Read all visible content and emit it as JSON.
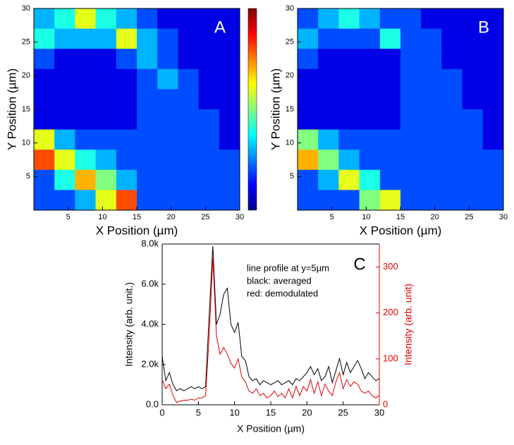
{
  "chart_data": [
    {
      "type": "heatmap",
      "panel_label": "A",
      "x_label": "X Position (µm)",
      "y_label": "Y Position (µm)",
      "xlim": [
        0,
        30
      ],
      "ylim": [
        0,
        30
      ],
      "xticks": [
        5,
        10,
        15,
        20,
        25,
        30
      ],
      "yticks": [
        5,
        10,
        15,
        20,
        25,
        30
      ],
      "zlim": [
        0,
        10
      ],
      "colormap": "jet",
      "colorbar": true,
      "z": [
        [
          3,
          4,
          6,
          4,
          3,
          2,
          1,
          1,
          1,
          1
        ],
        [
          4,
          3,
          3,
          3,
          6,
          3,
          2,
          1,
          1,
          1
        ],
        [
          2,
          1,
          1,
          1,
          2,
          3,
          2,
          1,
          1,
          1
        ],
        [
          1,
          1,
          1,
          1,
          1,
          2,
          3,
          2,
          1,
          1
        ],
        [
          1,
          1,
          1,
          1,
          1,
          2,
          2,
          2,
          1,
          1
        ],
        [
          1,
          1,
          1,
          1,
          1,
          2,
          2,
          2,
          2,
          1
        ],
        [
          6,
          3,
          2,
          2,
          2,
          2,
          2,
          2,
          2,
          1
        ],
        [
          8,
          6,
          4,
          3,
          2,
          2,
          2,
          2,
          2,
          2
        ],
        [
          2,
          4,
          7,
          5,
          3,
          2,
          2,
          2,
          2,
          2
        ],
        [
          2,
          2,
          3,
          6,
          8,
          2,
          2,
          2,
          2,
          2
        ]
      ]
    },
    {
      "type": "heatmap",
      "panel_label": "B",
      "x_label": "X Position (µm)",
      "y_label": "Y Position (µm)",
      "xlim": [
        0,
        30
      ],
      "ylim": [
        0,
        30
      ],
      "xticks": [
        5,
        10,
        15,
        20,
        25,
        30
      ],
      "yticks": [
        5,
        10,
        15,
        20,
        25,
        30
      ],
      "zlim": [
        0,
        10
      ],
      "colormap": "jet",
      "colorbar": false,
      "z": [
        [
          2,
          3,
          4,
          3,
          2,
          2,
          1,
          1,
          1,
          1
        ],
        [
          3,
          2,
          2,
          2,
          4,
          2,
          2,
          1,
          1,
          1
        ],
        [
          2,
          1,
          1,
          1,
          1,
          2,
          2,
          1,
          1,
          1
        ],
        [
          1,
          1,
          1,
          1,
          1,
          2,
          2,
          2,
          1,
          1
        ],
        [
          1,
          1,
          1,
          1,
          1,
          2,
          2,
          2,
          1,
          1
        ],
        [
          1,
          1,
          1,
          1,
          1,
          2,
          2,
          2,
          2,
          1
        ],
        [
          5,
          3,
          2,
          2,
          2,
          2,
          2,
          2,
          2,
          1
        ],
        [
          7,
          5,
          3,
          2,
          2,
          2,
          2,
          2,
          2,
          2
        ],
        [
          2,
          3,
          6,
          4,
          2,
          2,
          2,
          2,
          2,
          2
        ],
        [
          2,
          2,
          2,
          5,
          6,
          2,
          2,
          2,
          2,
          2
        ]
      ]
    },
    {
      "type": "line",
      "panel_label": "C",
      "x_label": "X Position (µm)",
      "y_label": "Intensity (arb. unit.)",
      "y2_label": "Intensity (arb. unit)",
      "annotations": [
        "line profile at y=5µm",
        "black: averaged",
        "red: demodulated"
      ],
      "xlim": [
        0,
        30
      ],
      "xticks": [
        0,
        5,
        10,
        15,
        20,
        25,
        30
      ],
      "ylim": [
        0,
        8000
      ],
      "yticks": [
        {
          "value": 0,
          "label": "0.0"
        },
        {
          "value": 2000,
          "label": "2.0k"
        },
        {
          "value": 4000,
          "label": "4.0k"
        },
        {
          "value": 6000,
          "label": "6.0k"
        },
        {
          "value": 8000,
          "label": "8.0k"
        }
      ],
      "y2lim": [
        0,
        350
      ],
      "y2ticks": [
        0,
        100,
        200,
        300
      ],
      "y2_color": "#e00000",
      "x": [
        0,
        0.5,
        1,
        1.5,
        2,
        2.5,
        3,
        3.5,
        4,
        4.5,
        5,
        5.5,
        6,
        6.5,
        7,
        7.5,
        8,
        8.5,
        9,
        9.5,
        10,
        10.5,
        11,
        11.5,
        12,
        12.5,
        13,
        13.5,
        14,
        14.5,
        15,
        15.5,
        16,
        16.5,
        17,
        17.5,
        18,
        18.5,
        19,
        19.5,
        20,
        20.5,
        21,
        21.5,
        22,
        22.5,
        23,
        23.5,
        24,
        24.5,
        25,
        25.5,
        26,
        26.5,
        27,
        27.5,
        28,
        28.5,
        29,
        29.5,
        30
      ],
      "series": [
        {
          "color": "#000000",
          "values": [
            2400,
            1200,
            1600,
            1000,
            700,
            800,
            700,
            800,
            900,
            800,
            900,
            800,
            900,
            4500,
            7900,
            4000,
            4500,
            5500,
            5800,
            4000,
            3600,
            4100,
            2400,
            2200,
            1400,
            1200,
            1300,
            1000,
            1200,
            1100,
            1000,
            1100,
            1200,
            1000,
            1100,
            1200,
            1000,
            1300,
            1200,
            1400,
            1600,
            1900,
            1500,
            1800,
            1200,
            1400,
            1900,
            1100,
            1700,
            2300,
            1500,
            2100,
            1600,
            1900,
            2200,
            1800,
            1300,
            1600,
            1400,
            1200,
            1300
          ]
        },
        {
          "color": "#e00000",
          "axis": "y2",
          "values": [
            55,
            35,
            45,
            20,
            5,
            8,
            10,
            10,
            12,
            10,
            15,
            15,
            20,
            150,
            320,
            150,
            110,
            125,
            110,
            90,
            80,
            100,
            60,
            50,
            30,
            25,
            35,
            20,
            25,
            15,
            20,
            30,
            18,
            25,
            15,
            35,
            15,
            40,
            20,
            40,
            30,
            55,
            25,
            50,
            20,
            45,
            30,
            20,
            50,
            70,
            35,
            55,
            40,
            50,
            45,
            30,
            25,
            30,
            20,
            15,
            20
          ]
        }
      ]
    }
  ]
}
